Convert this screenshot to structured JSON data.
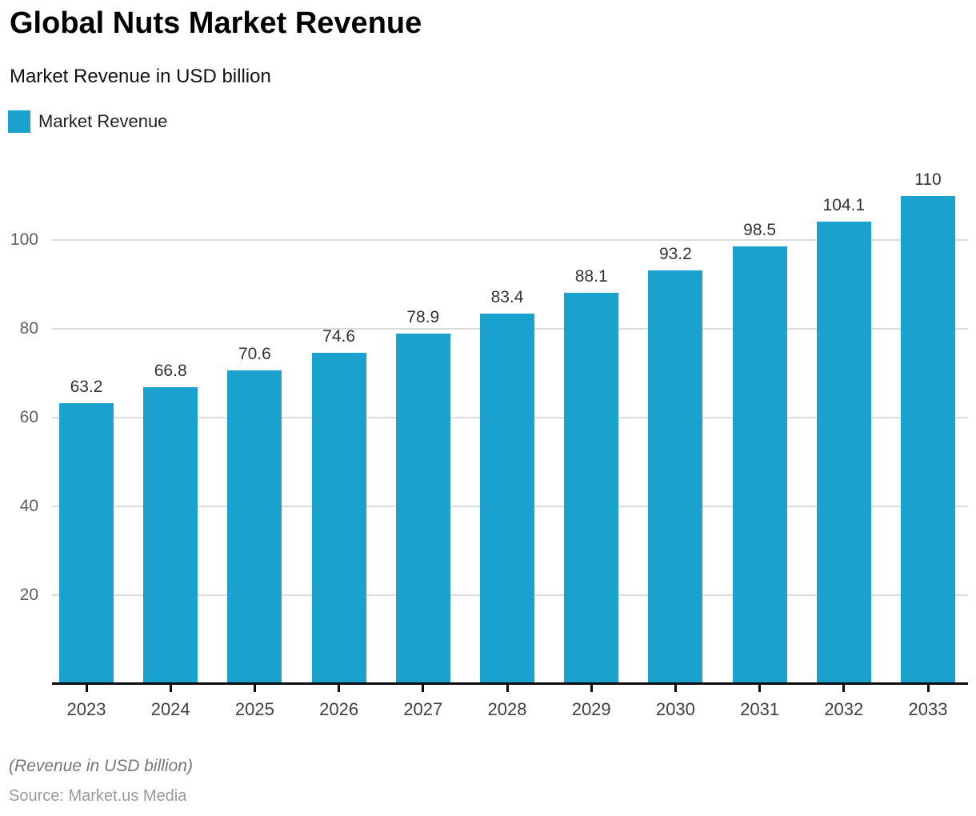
{
  "header": {
    "title": "Global Nuts Market Revenue",
    "subtitle": "Market Revenue in USD billion"
  },
  "legend": {
    "label": "Market Revenue",
    "swatch_color": "#1BA1CE"
  },
  "chart_data": {
    "type": "bar",
    "title": "Global Nuts Market Revenue",
    "subtitle": "Market Revenue in USD billion",
    "categories": [
      "2023",
      "2024",
      "2025",
      "2026",
      "2027",
      "2028",
      "2029",
      "2030",
      "2031",
      "2032",
      "2033"
    ],
    "series": [
      {
        "name": "Market Revenue",
        "values": [
          63.2,
          66.8,
          70.6,
          74.6,
          78.9,
          83.4,
          88.1,
          93.2,
          98.5,
          104.1,
          110
        ]
      }
    ],
    "data_labels": [
      "63.2",
      "66.8",
      "70.6",
      "74.6",
      "78.9",
      "83.4",
      "88.1",
      "93.2",
      "98.5",
      "104.1",
      "110"
    ],
    "xlabel": "",
    "ylabel": "",
    "yticks": [
      20,
      40,
      60,
      80,
      100
    ],
    "ylim": [
      0,
      116
    ],
    "grid": true,
    "legend_position": "top-left",
    "bar_color": "#1BA1CE",
    "gridline_color": "#dcdcdc",
    "axis_color": "#0b0b0b"
  },
  "footer": {
    "note": "(Revenue in USD billion)",
    "source": "Source: Market.us Media"
  }
}
